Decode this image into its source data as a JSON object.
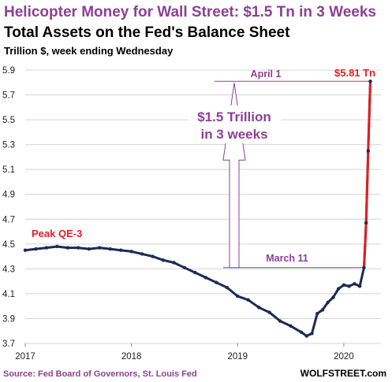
{
  "chart_data": {
    "type": "line",
    "title": "Helicopter Money for Wall Street: $1.5 Tn in 3 Weeks",
    "subtitle": "Total Assets on the Fed's Balance Sheet",
    "ylabel": "Trillion $, week ending Wednesday",
    "ylim": [
      3.7,
      5.9
    ],
    "yticks": [
      "3.7",
      "3.9",
      "4.1",
      "4.3",
      "4.5",
      "4.7",
      "4.9",
      "5.1",
      "5.3",
      "5.5",
      "5.7",
      "5.9"
    ],
    "xlim": [
      2017.0,
      2020.35
    ],
    "xticks": [
      "2017",
      "2018",
      "2019",
      "2020"
    ],
    "grid": "horizontal",
    "series": [
      {
        "color": "#1c2a55",
        "highlight_color": "#e01f1f",
        "points": [
          [
            2017.0,
            4.45
          ],
          [
            2017.1,
            4.46
          ],
          [
            2017.2,
            4.47
          ],
          [
            2017.3,
            4.48
          ],
          [
            2017.4,
            4.47
          ],
          [
            2017.5,
            4.47
          ],
          [
            2017.6,
            4.46
          ],
          [
            2017.7,
            4.47
          ],
          [
            2017.8,
            4.46
          ],
          [
            2017.9,
            4.45
          ],
          [
            2018.0,
            4.44
          ],
          [
            2018.1,
            4.42
          ],
          [
            2018.2,
            4.4
          ],
          [
            2018.3,
            4.37
          ],
          [
            2018.4,
            4.35
          ],
          [
            2018.5,
            4.31
          ],
          [
            2018.6,
            4.27
          ],
          [
            2018.7,
            4.23
          ],
          [
            2018.8,
            4.19
          ],
          [
            2018.9,
            4.15
          ],
          [
            2019.0,
            4.08
          ],
          [
            2019.1,
            4.05
          ],
          [
            2019.2,
            3.99
          ],
          [
            2019.3,
            3.95
          ],
          [
            2019.4,
            3.88
          ],
          [
            2019.5,
            3.84
          ],
          [
            2019.6,
            3.79
          ],
          [
            2019.65,
            3.76
          ],
          [
            2019.7,
            3.78
          ],
          [
            2019.75,
            3.94
          ],
          [
            2019.8,
            3.97
          ],
          [
            2019.85,
            4.03
          ],
          [
            2019.9,
            4.07
          ],
          [
            2019.95,
            4.14
          ],
          [
            2020.0,
            4.17
          ],
          [
            2020.05,
            4.16
          ],
          [
            2020.1,
            4.18
          ],
          [
            2020.15,
            4.16
          ],
          [
            2020.19,
            4.31
          ],
          [
            2020.21,
            4.67
          ],
          [
            2020.23,
            5.25
          ],
          [
            2020.25,
            5.81
          ]
        ]
      }
    ],
    "annotations": {
      "peak": "Peak QE-3",
      "end_value": "$5.81 Tn",
      "april": "April 1",
      "march": "March 11",
      "increase_line1": "$1.5 Trillion",
      "increase_line2": "in 3 weeks"
    },
    "source": "Source: Fed Board of Governors, St. Louis Fed",
    "brand": "WOLFSTREET.com"
  }
}
